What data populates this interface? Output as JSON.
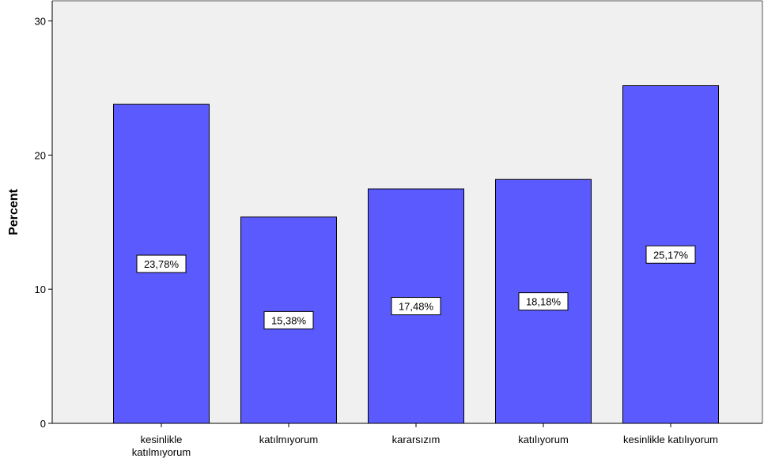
{
  "chart_data": {
    "type": "bar",
    "ylabel": "Percent",
    "ylim": [
      0,
      31.5
    ],
    "yticks": [
      0,
      10,
      20,
      30
    ],
    "grid": false,
    "colors": {
      "bar": "#5a5aff",
      "plot_background": "#f0f0f0",
      "label_background": "#ffffff"
    },
    "categories": [
      [
        "kesinlikle",
        "katılmıyorum"
      ],
      [
        "katılmıyorum"
      ],
      [
        "kararsızım"
      ],
      [
        "katılıyorum"
      ],
      [
        "kesinlikle katılıyorum"
      ]
    ],
    "values": [
      23.78,
      15.38,
      17.48,
      18.18,
      25.17
    ],
    "data_labels": [
      "23,78%",
      "15,38%",
      "17,48%",
      "18,18%",
      "25,17%"
    ]
  }
}
